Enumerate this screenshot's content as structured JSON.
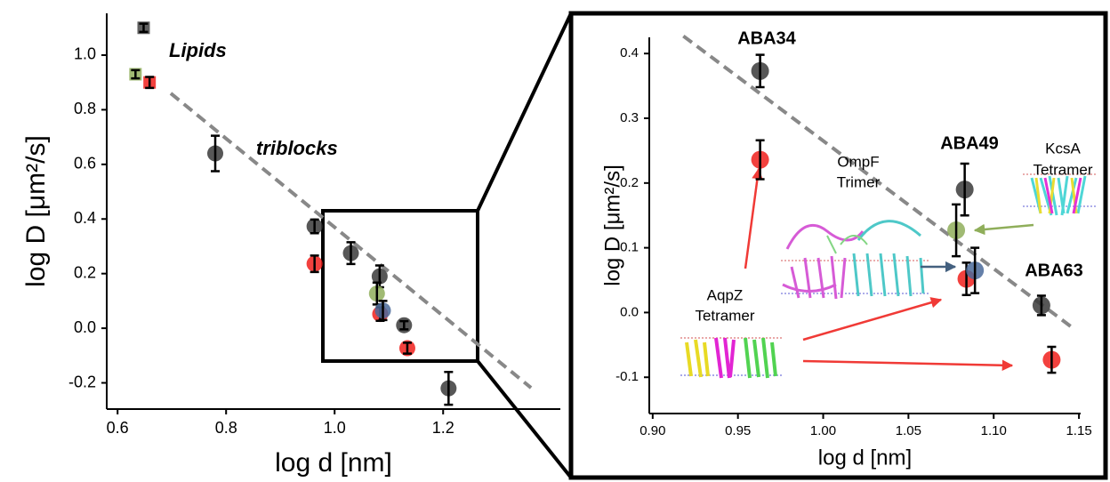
{
  "chart_data": [
    {
      "type": "scatter",
      "x_label": "log d [nm]",
      "y_label": "log D [μm²/s]",
      "xlim": [
        0.58,
        1.416
      ],
      "ylim": [
        -0.296,
        1.153
      ],
      "xticks": [
        0.6,
        0.8,
        {
          "value": 1,
          "label": "1.0"
        },
        1.2
      ],
      "yticks": [
        -0.2,
        {
          "value": 0,
          "label": "0.0"
        },
        0.2,
        0.4,
        0.6,
        0.8,
        {
          "value": 1,
          "label": "1.0"
        }
      ],
      "annotations": [
        "Lipids",
        "triblocks"
      ],
      "fit_line": {
        "x": [
          0.698,
          1.362
        ],
        "y": [
          0.86,
          -0.218
        ],
        "color": "#888888"
      },
      "series": [
        {
          "color": "#444444",
          "marker": "square",
          "x": [
            0.648
          ],
          "values": [
            1.1
          ],
          "errors": [
            0.015
          ]
        },
        {
          "color": "#8fae5a",
          "marker": "square",
          "x": [
            0.633
          ],
          "values": [
            0.93
          ],
          "errors": [
            0.015
          ]
        },
        {
          "color": "#f0201c",
          "marker": "square",
          "x": [
            0.659
          ],
          "values": [
            0.9
          ],
          "errors": [
            0.02
          ]
        },
        {
          "color": "#3a3a3a",
          "marker": "circle",
          "x": [
            0.78,
            0.963,
            1.03,
            1.083,
            1.128,
            1.21
          ],
          "values": [
            0.64,
            0.373,
            0.275,
            0.19,
            0.011,
            -0.22
          ],
          "errors": [
            0.065,
            0.025,
            0.04,
            0.04,
            0.015,
            0.06
          ]
        },
        {
          "color": "#f0201c",
          "marker": "circle",
          "x": [
            0.963,
            1.084,
            1.134
          ],
          "values": [
            0.236,
            0.052,
            -0.073
          ],
          "errors": [
            0.03,
            0.025,
            0.02
          ]
        },
        {
          "color": "#8fae5a",
          "marker": "circle",
          "x": [
            1.078
          ],
          "values": [
            0.127
          ],
          "errors": [
            0.04
          ]
        },
        {
          "color": "#4a6a9a",
          "marker": "circle",
          "x": [
            1.089
          ],
          "values": [
            0.065
          ],
          "errors": [
            0.035
          ]
        }
      ]
    },
    {
      "type": "scatter",
      "x_label": "log d [nm]",
      "y_label": "log D [μm²/s]",
      "xlim": [
        0.898,
        1.151
      ],
      "ylim": [
        -0.156,
        0.425
      ],
      "xticks": [
        {
          "value": 0.9,
          "label": "0.90"
        },
        0.95,
        {
          "value": 1,
          "label": "1.00"
        },
        1.05,
        {
          "value": 1.1,
          "label": "1.10"
        },
        1.15
      ],
      "yticks": [
        -0.1,
        {
          "value": 0,
          "label": "0.0"
        },
        0.1,
        0.2,
        0.3,
        0.4
      ],
      "annotations": [
        "ABA34",
        "ABA49",
        "ABA63",
        "KcsA",
        "Tetramer",
        "OmpF",
        "Trimer",
        "AqpZ",
        "Tetramer"
      ],
      "fit_line": {
        "x": [
          0.918,
          1.147
        ],
        "y": [
          0.427,
          -0.025
        ],
        "color": "#888888"
      },
      "series": [
        {
          "color": "#3a3a3a",
          "marker": "circle",
          "x": [
            0.963,
            1.083,
            1.128
          ],
          "values": [
            0.373,
            0.19,
            0.011
          ],
          "errors": [
            0.025,
            0.04,
            0.015
          ]
        },
        {
          "color": "#f0201c",
          "marker": "circle",
          "x": [
            0.963,
            1.084,
            1.134
          ],
          "values": [
            0.236,
            0.052,
            -0.073
          ],
          "errors": [
            0.03,
            0.025,
            0.02
          ]
        },
        {
          "color": "#8fae5a",
          "marker": "circle",
          "x": [
            1.078
          ],
          "values": [
            0.127
          ],
          "errors": [
            0.04
          ]
        },
        {
          "color": "#4a6a9a",
          "marker": "circle",
          "x": [
            1.089
          ],
          "values": [
            0.065
          ],
          "errors": [
            0.035
          ]
        }
      ]
    }
  ]
}
